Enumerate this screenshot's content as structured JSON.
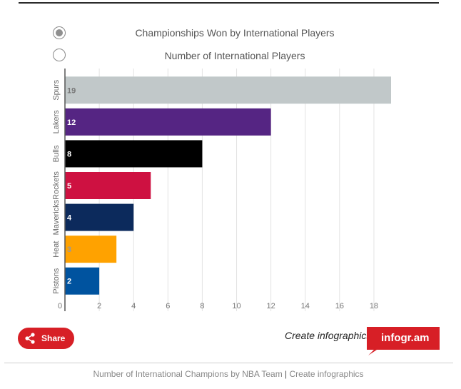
{
  "toggles": [
    {
      "label": "Championships Won by International Players",
      "selected": true
    },
    {
      "label": "Number of International Players",
      "selected": false
    }
  ],
  "chart_data": {
    "type": "bar",
    "orientation": "horizontal",
    "title": "",
    "xlabel": "",
    "ylabel": "",
    "categories": [
      "Spurs",
      "Lakers",
      "Bulls",
      "Rockets",
      "Mavericks",
      "Heat",
      "Pistons"
    ],
    "values": [
      19,
      12,
      8,
      5,
      4,
      3,
      2
    ],
    "colors": [
      "#c1c8c9",
      "#552583",
      "#000000",
      "#ce1141",
      "#0c2a5c",
      "#ffa200",
      "#00539f"
    ],
    "label_colors": [
      "#777777",
      "#ffffff",
      "#ffffff",
      "#ffffff",
      "#ffffff",
      "#999999",
      "#ffffff"
    ],
    "xlim": [
      0,
      19
    ],
    "xticks": [
      0,
      2,
      4,
      6,
      8,
      10,
      12,
      14,
      16,
      18
    ],
    "grid": true,
    "legend": "none"
  },
  "share": {
    "label": "Share"
  },
  "branding": {
    "create_text": "Create infographics",
    "logo_text": "infogr.am"
  },
  "footer": {
    "title": "Number of International Champions by NBA Team",
    "separator": "|",
    "link": "Create infographics"
  }
}
